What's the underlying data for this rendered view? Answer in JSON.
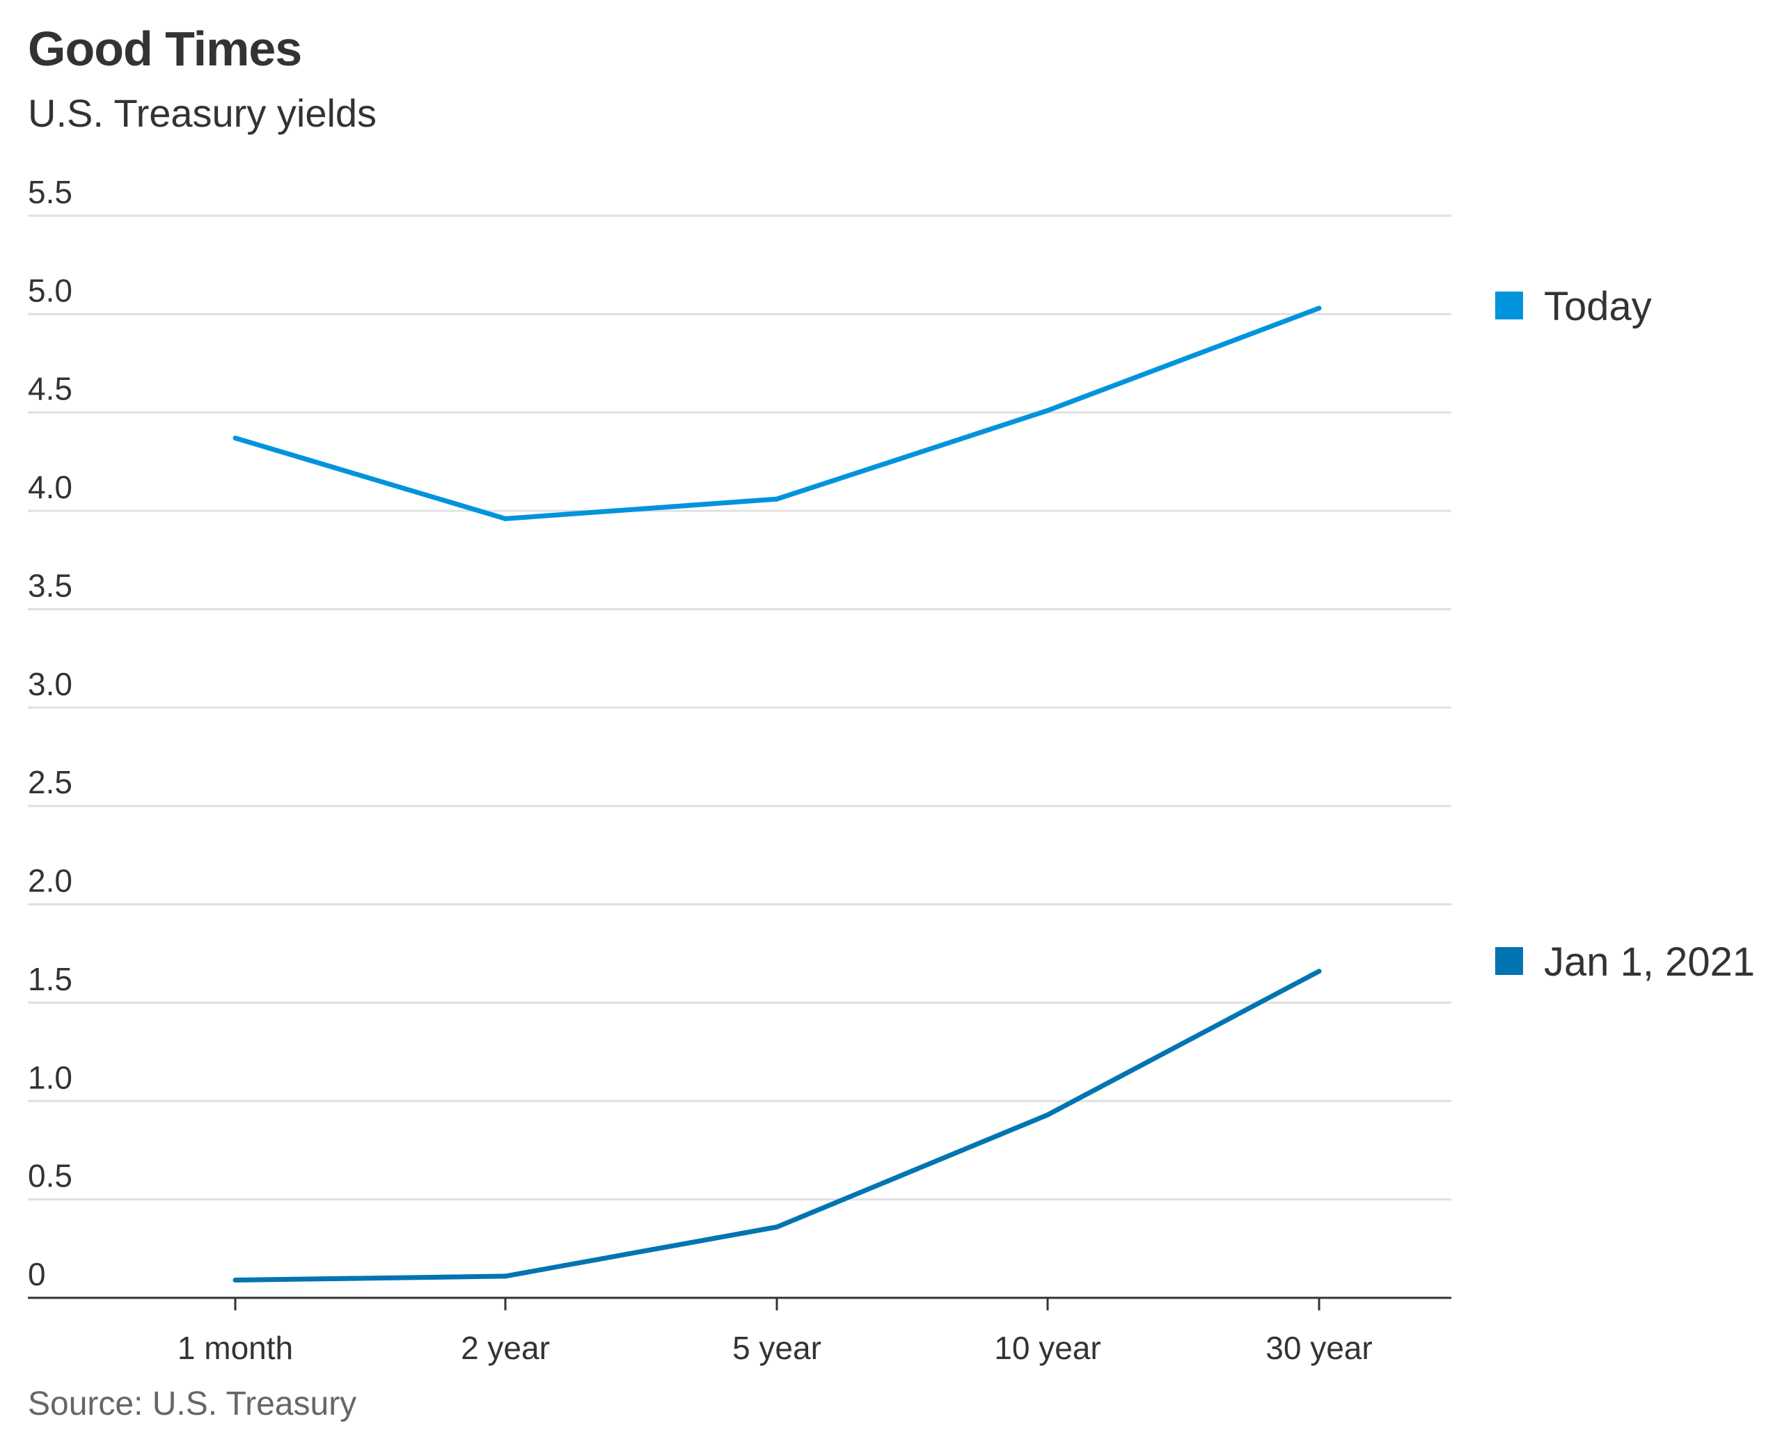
{
  "title": "Good Times",
  "subtitle": "U.S. Treasury yields",
  "source": "Source: U.S. Treasury",
  "colors": {
    "today": "#0293dd",
    "jan2021": "#0274b1",
    "grid": "#e0e0e0",
    "axis": "#333333"
  },
  "chart_data": {
    "type": "line",
    "categories": [
      "1 month",
      "2 year",
      "5 year",
      "10 year",
      "30 year"
    ],
    "series": [
      {
        "name": "Today",
        "color": "#0293dd",
        "values": [
          4.37,
          3.96,
          4.06,
          4.51,
          5.03
        ]
      },
      {
        "name": "Jan 1, 2021",
        "color": "#0274b1",
        "values": [
          0.09,
          0.11,
          0.36,
          0.93,
          1.66
        ]
      }
    ],
    "y_ticks": [
      0,
      0.5,
      1.0,
      1.5,
      2.0,
      2.5,
      3.0,
      3.5,
      4.0,
      4.5,
      5.0,
      5.5
    ],
    "y_tick_labels": [
      "0",
      "0.5",
      "1.0",
      "1.5",
      "2.0",
      "2.5",
      "3.0",
      "3.5",
      "4.0",
      "4.5",
      "5.0",
      "5.5"
    ],
    "ylim": [
      0,
      5.5
    ],
    "grid": true,
    "legend_position": "right"
  }
}
